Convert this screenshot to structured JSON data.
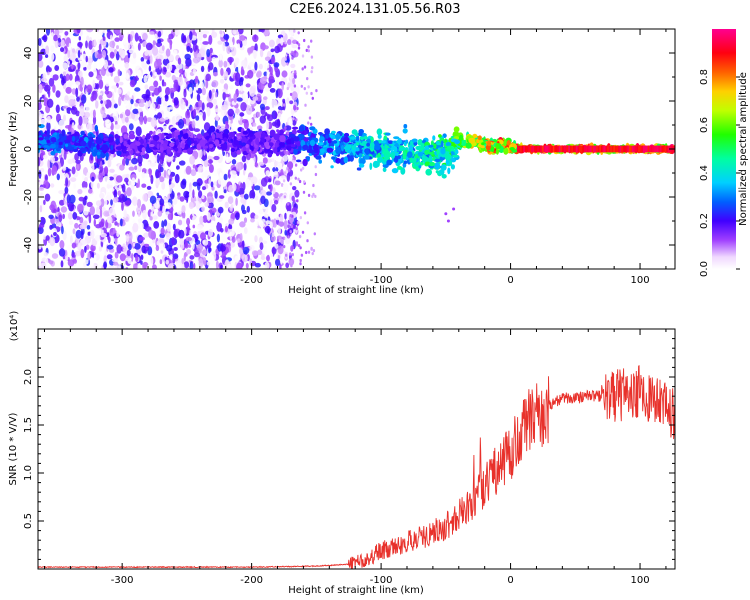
{
  "title": "C2E6.2024.131.05.56.R03",
  "chart_data": [
    {
      "type": "heatmap",
      "xlabel": "Height of straight line (km)",
      "ylabel": "Frequency (Hz)",
      "xlim": [
        -365,
        127
      ],
      "ylim": [
        -50,
        50
      ],
      "xticks": [
        -300,
        -200,
        -100,
        0,
        100
      ],
      "yticks": [
        -40,
        -20,
        0,
        20,
        40
      ],
      "colorbar": {
        "label": "Normalized spectral amplitude",
        "range": [
          0,
          1
        ],
        "ticks": [
          "0.0",
          "0.2",
          "0.4",
          "0.6",
          "0.8"
        ]
      },
      "ridge": {
        "x": [
          -355,
          -320,
          -300,
          -260,
          -220,
          -180,
          -160,
          -140,
          -120,
          -100,
          -80,
          -60,
          -45,
          -40,
          -30,
          -20,
          -10,
          0,
          10,
          30,
          60,
          90,
          127
        ],
        "y": [
          3,
          2,
          1,
          2,
          3,
          3,
          3,
          3,
          2,
          1,
          0,
          -1,
          0,
          2,
          3,
          2,
          1,
          1,
          0,
          0,
          0,
          0,
          0
        ],
        "amplitude": [
          0.3,
          0.3,
          0.2,
          0.2,
          0.2,
          0.2,
          0.3,
          0.35,
          0.4,
          0.45,
          0.45,
          0.5,
          0.55,
          0.6,
          0.75,
          0.8,
          0.85,
          0.85,
          0.9,
          0.9,
          0.9,
          0.9,
          0.9
        ]
      }
    },
    {
      "type": "line",
      "xlabel": "Height of straight line (km)",
      "ylabel": "SNR (10 * V/V)",
      "scale_label": "(x10⁴)",
      "xlim": [
        -365,
        127
      ],
      "ylim": [
        0,
        2.5
      ],
      "xticks": [
        -300,
        -200,
        -100,
        0,
        100
      ],
      "yticks": [
        0.5,
        1.0,
        1.5,
        2.0
      ],
      "ytick_labels": [
        "0.5",
        "1.0",
        "1.5",
        "2.0"
      ],
      "series": [
        {
          "color": "#e8312b",
          "x": [
            -365,
            -300,
            -250,
            -200,
            -150,
            -125,
            -110,
            -100,
            -90,
            -80,
            -70,
            -60,
            -50,
            -40,
            -30,
            -20,
            -10,
            0,
            10,
            20,
            30,
            40,
            60,
            80,
            100,
            110,
            127
          ],
          "y": [
            0.02,
            0.02,
            0.02,
            0.02,
            0.03,
            0.05,
            0.1,
            0.2,
            0.22,
            0.28,
            0.32,
            0.38,
            0.45,
            0.55,
            0.68,
            0.85,
            1.05,
            1.2,
            1.45,
            1.6,
            1.7,
            1.78,
            1.8,
            1.8,
            1.85,
            1.75,
            1.6
          ]
        }
      ]
    }
  ]
}
